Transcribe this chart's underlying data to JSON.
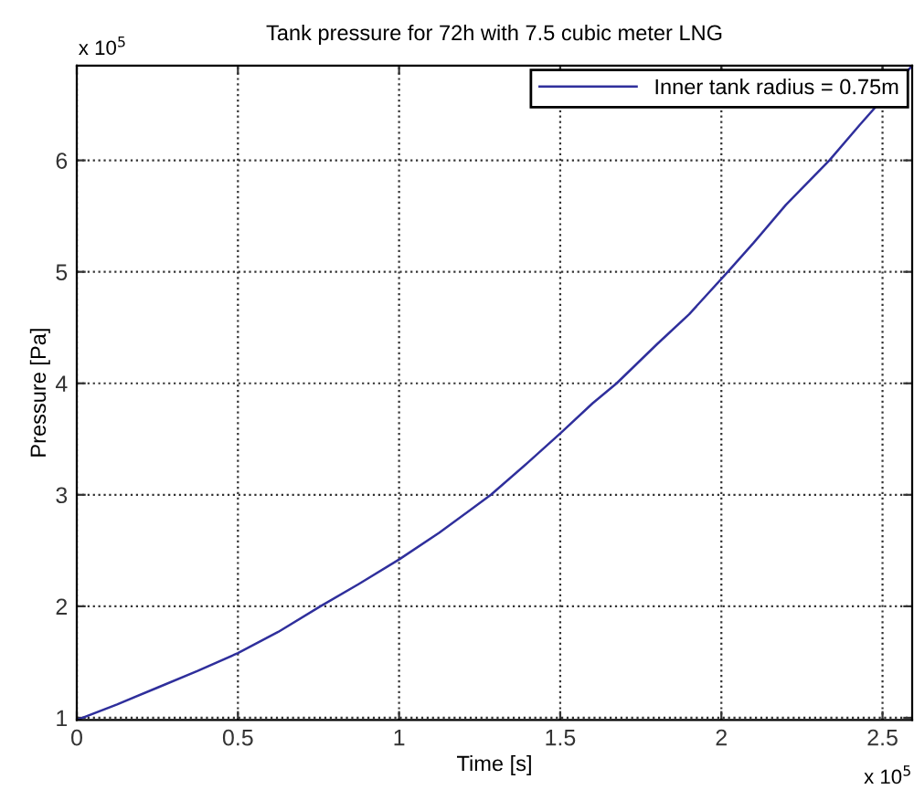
{
  "chart_data": {
    "type": "line",
    "title": "Tank pressure for 72h with 7.5 cubic meter LNG",
    "xlabel": "Time [s]",
    "ylabel": "Pressure [Pa]",
    "annotations": [
      "x 10$^{5}$",
      "x 10$^{5}$"
    ],
    "series": [
      {
        "name": "Inner tank radius = 0.75m",
        "color": "#2f2f9c",
        "x": [
          0,
          0.125,
          0.25,
          0.375,
          0.5,
          0.625,
          0.756,
          0.875,
          1.0,
          1.125,
          1.285,
          1.4,
          1.5,
          1.6,
          1.675,
          1.8,
          1.9,
          2.02,
          2.1,
          2.2,
          2.335,
          2.43,
          2.592
        ],
        "values": [
          0.98,
          1.12,
          1.27,
          1.42,
          1.58,
          1.77,
          2.0,
          2.2,
          2.42,
          2.66,
          3.0,
          3.29,
          3.55,
          3.82,
          4.0,
          4.35,
          4.62,
          5.0,
          5.26,
          5.6,
          6.0,
          6.32,
          6.85
        ]
      }
    ],
    "xlim": [
      0,
      2.592
    ],
    "ylim": [
      0.98,
      6.85
    ],
    "xticks": [
      0,
      0.5,
      1,
      1.5,
      2,
      2.5
    ],
    "yticks": [
      1,
      2,
      3,
      4,
      5,
      6
    ],
    "grid": true,
    "legend": "top right",
    "line_style": "solid",
    "marker": "none"
  }
}
